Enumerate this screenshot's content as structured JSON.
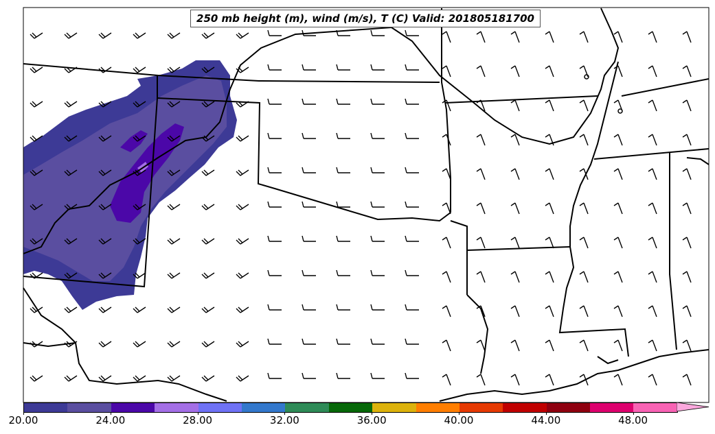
{
  "title": "250 mb height (m), wind (m/s), T (C) Valid: 201805181700",
  "colorbar": {
    "tick_labels": [
      "20.00",
      "24.00",
      "28.00",
      "32.00",
      "36.00",
      "40.00",
      "44.00",
      "48.00"
    ],
    "colors": [
      "#3d3a96",
      "#5a4ea0",
      "#4b07a8",
      "#a46fe6",
      "#6f72f5",
      "#3378cc",
      "#2e8b57",
      "#066808",
      "#dcb20c",
      "#ff7e00",
      "#e63a02",
      "#c00000",
      "#8f0010",
      "#dd006e",
      "#f863b4"
    ],
    "extend_color": "#fba8dd"
  }
}
